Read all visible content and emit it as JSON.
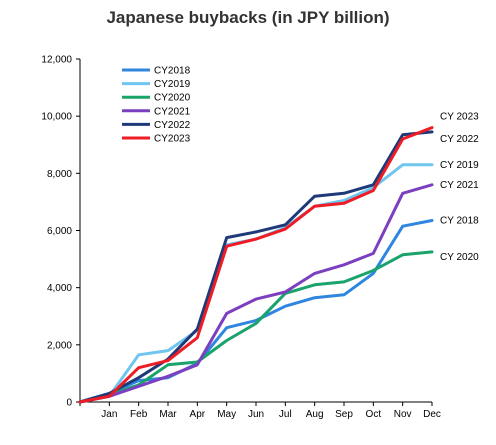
{
  "chart_data": {
    "type": "line",
    "title": "Japanese buybacks (in JPY billion)",
    "xlabel": "",
    "ylabel": "",
    "categories": [
      "",
      "Jan",
      "Feb",
      "Mar",
      "Apr",
      "May",
      "Jun",
      "Jul",
      "Aug",
      "Sep",
      "Oct",
      "Nov",
      "Dec"
    ],
    "ylim": [
      0,
      12000
    ],
    "yticks": [
      0,
      2000,
      4000,
      6000,
      8000,
      10000,
      12000
    ],
    "ytick_labels": [
      "0",
      "2,000",
      "4,000",
      "6,000",
      "8,000",
      "10,000",
      "12,000"
    ],
    "grid": false,
    "legend_position": "top-left",
    "series": [
      {
        "name": "CY2018",
        "color": "#2e86de",
        "end_label": "CY 2018",
        "values": [
          0,
          300,
          750,
          850,
          1350,
          2600,
          2850,
          3350,
          3650,
          3750,
          4500,
          6150,
          6350
        ]
      },
      {
        "name": "CY2019",
        "color": "#6ec6f0",
        "end_label": "CY 2019",
        "values": [
          0,
          200,
          1650,
          1800,
          2500,
          5500,
          5700,
          6100,
          6850,
          7050,
          7500,
          8300,
          8300
        ]
      },
      {
        "name": "CY2020",
        "color": "#1aa36a",
        "end_label": "CY 2020",
        "values": [
          0,
          250,
          600,
          1300,
          1400,
          2150,
          2750,
          3800,
          4100,
          4200,
          4600,
          5150,
          5250
        ]
      },
      {
        "name": "CY2021",
        "color": "#7b3fbf",
        "end_label": "CY 2021",
        "values": [
          0,
          200,
          550,
          900,
          1300,
          3100,
          3600,
          3850,
          4500,
          4800,
          5200,
          7300,
          7600
        ]
      },
      {
        "name": "CY2022",
        "color": "#1f3a78",
        "end_label": "CY 2022",
        "values": [
          0,
          300,
          850,
          1500,
          2550,
          5750,
          5950,
          6200,
          7200,
          7300,
          7600,
          9350,
          9450
        ]
      },
      {
        "name": "CY2023",
        "color": "#ee1c25",
        "end_label": "CY 2023",
        "values": [
          0,
          200,
          1200,
          1450,
          2250,
          5450,
          5700,
          6050,
          6850,
          6950,
          7400,
          9200,
          9600
        ]
      }
    ]
  }
}
